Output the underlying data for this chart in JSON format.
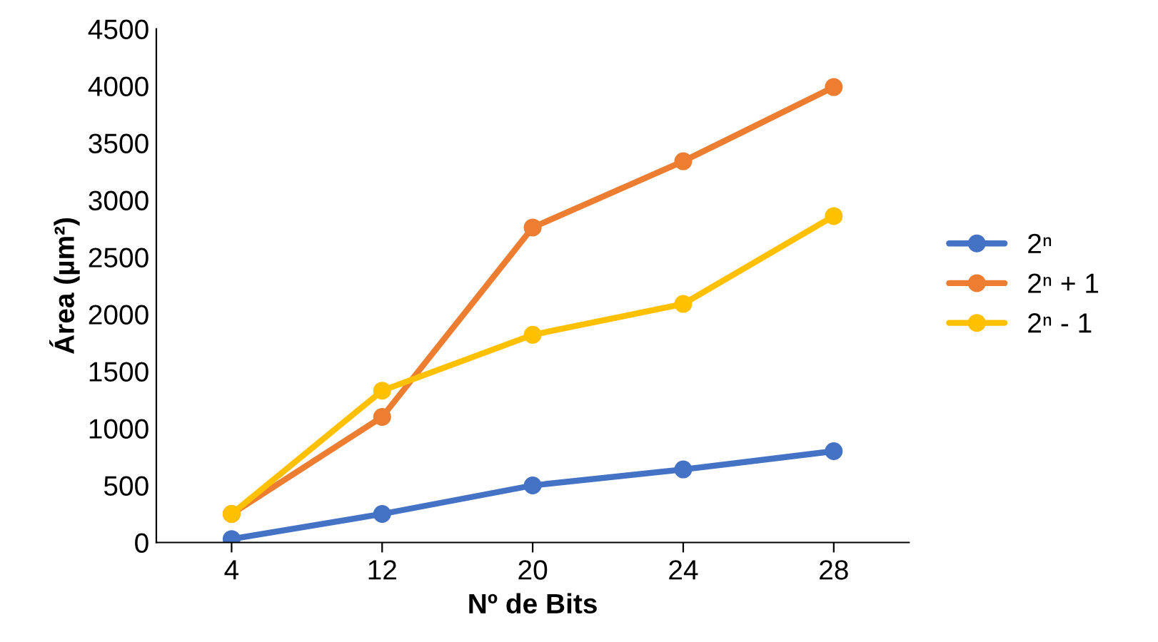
{
  "chart_data": {
    "type": "line",
    "xlabel": "Nº de Bits",
    "ylabel": "Área (µm²)",
    "categories": [
      "4",
      "12",
      "20",
      "24",
      "28"
    ],
    "series": [
      {
        "name": "2ⁿ",
        "color": "#4472c4",
        "values": [
          30,
          250,
          500,
          640,
          800
        ]
      },
      {
        "name": "2ⁿ + 1",
        "color": "#ed7d31",
        "values": [
          250,
          1100,
          2760,
          3340,
          3990
        ]
      },
      {
        "name": "2ⁿ - 1",
        "color": "#ffc000",
        "values": [
          250,
          1330,
          1820,
          2090,
          2860
        ]
      }
    ],
    "ylim": [
      0,
      4500
    ],
    "yticks": [
      0,
      500,
      1000,
      1500,
      2000,
      2500,
      3000,
      3500,
      4000,
      4500
    ],
    "grid": false,
    "legend": "right",
    "marker": "circle",
    "line_style": "solid"
  }
}
